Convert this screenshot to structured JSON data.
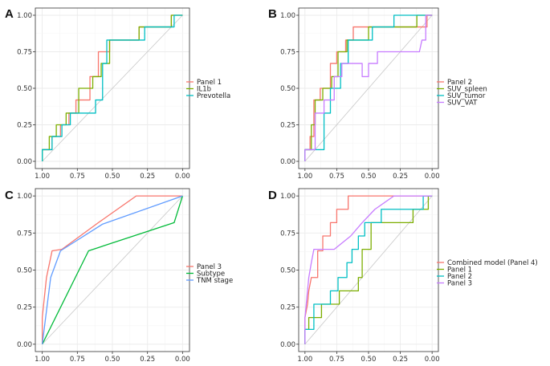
{
  "chart_data": [
    {
      "panel": "A",
      "type": "line",
      "title": "",
      "xlabel": "",
      "ylabel": "",
      "x_reversed": true,
      "xlim": [
        1.0,
        0.0
      ],
      "ylim": [
        0.0,
        1.0
      ],
      "x_ticks": [
        "1.00",
        "0.75",
        "0.50",
        "0.25",
        "0.00"
      ],
      "y_ticks": [
        "0.00",
        "0.25",
        "0.50",
        "0.75",
        "1.00"
      ],
      "grid": true,
      "legend_position": "right",
      "diagonal_reference": true,
      "series": [
        {
          "name": "Panel 1",
          "color": "#f8766d",
          "x": [
            1.0,
            1.0,
            0.93,
            0.93,
            0.87,
            0.87,
            0.81,
            0.81,
            0.76,
            0.76,
            0.66,
            0.66,
            0.6,
            0.6,
            0.52,
            0.52,
            0.31,
            0.31,
            0.08,
            0.08,
            0.04,
            0.0
          ],
          "y": [
            0.0,
            0.08,
            0.08,
            0.17,
            0.17,
            0.25,
            0.25,
            0.33,
            0.33,
            0.42,
            0.42,
            0.58,
            0.58,
            0.75,
            0.75,
            0.83,
            0.83,
            0.92,
            0.92,
            1.0,
            1.0,
            1.0
          ]
        },
        {
          "name": "IL1b",
          "color": "#7cae00",
          "x": [
            1.0,
            1.0,
            0.95,
            0.95,
            0.9,
            0.9,
            0.83,
            0.83,
            0.74,
            0.74,
            0.64,
            0.64,
            0.58,
            0.58,
            0.52,
            0.52,
            0.31,
            0.31,
            0.08,
            0.08,
            0.04,
            0.0
          ],
          "y": [
            0.0,
            0.08,
            0.08,
            0.17,
            0.17,
            0.25,
            0.25,
            0.33,
            0.33,
            0.5,
            0.5,
            0.58,
            0.58,
            0.67,
            0.67,
            0.83,
            0.83,
            0.92,
            0.92,
            1.0,
            1.0,
            1.0
          ]
        },
        {
          "name": "Prevotella",
          "color": "#00bfc4",
          "x": [
            1.0,
            1.0,
            0.93,
            0.93,
            0.86,
            0.86,
            0.8,
            0.8,
            0.62,
            0.62,
            0.57,
            0.57,
            0.54,
            0.54,
            0.27,
            0.27,
            0.06,
            0.06,
            0.0
          ],
          "y": [
            0.0,
            0.08,
            0.08,
            0.17,
            0.17,
            0.25,
            0.25,
            0.33,
            0.33,
            0.42,
            0.42,
            0.67,
            0.67,
            0.83,
            0.83,
            0.92,
            0.92,
            1.0,
            1.0
          ]
        }
      ]
    },
    {
      "panel": "B",
      "type": "line",
      "title": "",
      "xlabel": "",
      "ylabel": "",
      "x_reversed": true,
      "xlim": [
        1.0,
        0.0
      ],
      "ylim": [
        0.0,
        1.0
      ],
      "x_ticks": [
        "1.00",
        "0.75",
        "0.50",
        "0.25",
        "0.00"
      ],
      "y_ticks": [
        "0.00",
        "0.25",
        "0.50",
        "0.75",
        "1.00"
      ],
      "grid": true,
      "legend_position": "right",
      "diagonal_reference": true,
      "series": [
        {
          "name": "Panel 2",
          "color": "#f8766d",
          "x": [
            1.0,
            1.0,
            0.96,
            0.96,
            0.93,
            0.93,
            0.88,
            0.88,
            0.8,
            0.8,
            0.75,
            0.75,
            0.68,
            0.68,
            0.62,
            0.62,
            0.56,
            0.56,
            0.45,
            0.45,
            0.04,
            0.04,
            0.0
          ],
          "y": [
            0.0,
            0.08,
            0.08,
            0.17,
            0.17,
            0.42,
            0.42,
            0.5,
            0.5,
            0.67,
            0.67,
            0.75,
            0.75,
            0.83,
            0.83,
            0.92,
            0.92,
            0.92,
            0.92,
            0.92,
            0.92,
            1.0,
            1.0
          ]
        },
        {
          "name": "SUV_spleen",
          "color": "#7cae00",
          "x": [
            1.0,
            1.0,
            0.95,
            0.95,
            0.92,
            0.92,
            0.86,
            0.86,
            0.79,
            0.79,
            0.74,
            0.74,
            0.67,
            0.67,
            0.6,
            0.6,
            0.5,
            0.5,
            0.12,
            0.12,
            0.03,
            0.03,
            0.0
          ],
          "y": [
            0.0,
            0.08,
            0.08,
            0.25,
            0.25,
            0.42,
            0.42,
            0.5,
            0.5,
            0.58,
            0.58,
            0.75,
            0.75,
            0.83,
            0.83,
            0.83,
            0.83,
            0.92,
            0.92,
            1.0,
            1.0,
            1.0,
            1.0
          ]
        },
        {
          "name": "SUV_tumor",
          "color": "#00bfc4",
          "x": [
            1.0,
            1.0,
            0.85,
            0.85,
            0.8,
            0.8,
            0.72,
            0.72,
            0.66,
            0.66,
            0.57,
            0.57,
            0.47,
            0.47,
            0.3,
            0.3,
            0.08,
            0.08,
            0.0
          ],
          "y": [
            0.0,
            0.08,
            0.08,
            0.33,
            0.33,
            0.5,
            0.5,
            0.67,
            0.67,
            0.83,
            0.83,
            0.83,
            0.83,
            0.92,
            0.92,
            1.0,
            1.0,
            1.0,
            1.0
          ]
        },
        {
          "name": "SUV_VAT",
          "color": "#c77cff",
          "x": [
            1.0,
            1.0,
            0.92,
            0.92,
            0.85,
            0.85,
            0.77,
            0.77,
            0.71,
            0.71,
            0.55,
            0.55,
            0.5,
            0.5,
            0.43,
            0.43,
            0.25,
            0.25,
            0.1,
            0.08,
            0.05,
            0.05,
            0.0
          ],
          "y": [
            0.0,
            0.08,
            0.08,
            0.33,
            0.33,
            0.42,
            0.42,
            0.58,
            0.58,
            0.67,
            0.67,
            0.58,
            0.58,
            0.67,
            0.67,
            0.75,
            0.75,
            0.75,
            0.75,
            0.83,
            0.83,
            1.0,
            1.0
          ]
        }
      ]
    },
    {
      "panel": "C",
      "type": "line",
      "title": "",
      "xlabel": "",
      "ylabel": "",
      "x_reversed": true,
      "xlim": [
        1.0,
        0.0
      ],
      "ylim": [
        0.0,
        1.0
      ],
      "x_ticks": [
        "1.00",
        "0.75",
        "0.50",
        "0.25",
        "0.00"
      ],
      "y_ticks": [
        "0.00",
        "0.25",
        "0.50",
        "0.75",
        "1.00"
      ],
      "grid": true,
      "legend_position": "right",
      "diagonal_reference": true,
      "series": [
        {
          "name": "Panel 3",
          "color": "#f8766d",
          "x": [
            1.0,
            1.0,
            0.97,
            0.93,
            0.86,
            0.6,
            0.33,
            0.0
          ],
          "y": [
            0.0,
            0.18,
            0.45,
            0.63,
            0.64,
            0.82,
            1.0,
            1.0
          ]
        },
        {
          "name": "Subtype",
          "color": "#00ba38",
          "x": [
            1.0,
            0.67,
            0.06,
            0.0
          ],
          "y": [
            0.0,
            0.63,
            0.82,
            1.0
          ]
        },
        {
          "name": "TNM stage",
          "color": "#619cff",
          "x": [
            1.0,
            0.94,
            0.87,
            0.57,
            0.0
          ],
          "y": [
            0.0,
            0.45,
            0.63,
            0.81,
            1.0
          ]
        }
      ]
    },
    {
      "panel": "D",
      "type": "line",
      "title": "",
      "xlabel": "",
      "ylabel": "",
      "x_reversed": true,
      "xlim": [
        1.0,
        0.0
      ],
      "ylim": [
        0.0,
        1.0
      ],
      "x_ticks": [
        "1.00",
        "0.75",
        "0.50",
        "0.25",
        "0.00"
      ],
      "y_ticks": [
        "0.00",
        "0.25",
        "0.50",
        "0.75",
        "1.00"
      ],
      "grid": true,
      "legend_position": "right",
      "diagonal_reference": true,
      "series": [
        {
          "name": "Combined model (Panel 4)",
          "color": "#f8766d",
          "x": [
            1.0,
            1.0,
            0.98,
            0.97,
            0.95,
            0.93,
            0.9,
            0.9,
            0.86,
            0.86,
            0.8,
            0.8,
            0.75,
            0.75,
            0.7,
            0.7,
            0.66,
            0.66,
            0.6,
            0.6,
            0.0
          ],
          "y": [
            0.0,
            0.18,
            0.27,
            0.36,
            0.45,
            0.45,
            0.45,
            0.63,
            0.63,
            0.73,
            0.73,
            0.82,
            0.82,
            0.91,
            0.91,
            0.91,
            0.91,
            1.0,
            1.0,
            1.0,
            1.0
          ]
        },
        {
          "name": "Panel 1",
          "color": "#7cae00",
          "x": [
            1.0,
            1.0,
            0.97,
            0.97,
            0.87,
            0.87,
            0.73,
            0.73,
            0.58,
            0.58,
            0.55,
            0.55,
            0.48,
            0.48,
            0.15,
            0.15,
            0.03,
            0.03,
            0.0
          ],
          "y": [
            0.0,
            0.1,
            0.1,
            0.18,
            0.18,
            0.27,
            0.27,
            0.36,
            0.36,
            0.45,
            0.45,
            0.64,
            0.64,
            0.82,
            0.82,
            0.91,
            0.91,
            1.0,
            1.0
          ]
        },
        {
          "name": "Panel 2",
          "color": "#00bfc4",
          "x": [
            1.0,
            1.0,
            0.93,
            0.93,
            0.8,
            0.8,
            0.74,
            0.74,
            0.67,
            0.67,
            0.63,
            0.63,
            0.58,
            0.58,
            0.53,
            0.53,
            0.4,
            0.4,
            0.07,
            0.07,
            0.0
          ],
          "y": [
            0.0,
            0.1,
            0.1,
            0.27,
            0.27,
            0.36,
            0.36,
            0.45,
            0.45,
            0.55,
            0.55,
            0.64,
            0.64,
            0.73,
            0.73,
            0.82,
            0.82,
            0.91,
            0.91,
            1.0,
            1.0
          ]
        },
        {
          "name": "Panel 3",
          "color": "#c77cff",
          "x": [
            1.0,
            1.0,
            0.98,
            0.97,
            0.95,
            0.93,
            0.87,
            0.77,
            0.64,
            0.64,
            0.55,
            0.45,
            0.3,
            0.0
          ],
          "y": [
            0.0,
            0.18,
            0.36,
            0.45,
            0.55,
            0.64,
            0.64,
            0.64,
            0.73,
            0.73,
            0.82,
            0.91,
            1.0,
            1.0
          ]
        }
      ]
    }
  ]
}
